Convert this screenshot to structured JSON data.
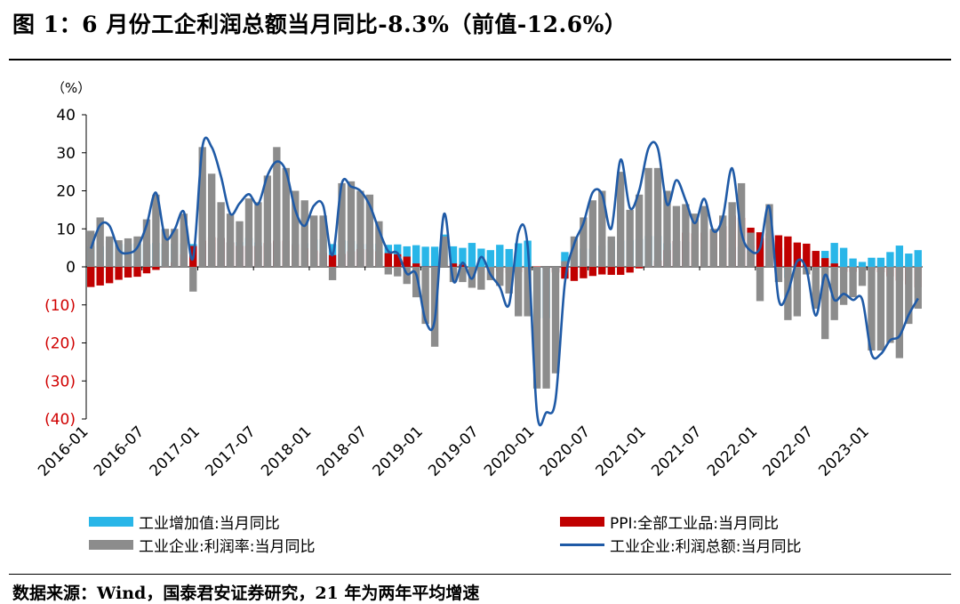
{
  "title": "图 1：6 月份工企利润总额当月同比-8.3%（前值-12.6%）",
  "source": "数据来源：Wind，国泰君安证券研究，21 年为两年平均增速",
  "colors": {
    "value_added": "#29b6e8",
    "ppi": "#c00000",
    "profit_margin": "#8c8c8c",
    "profit_total": "#1f5aa6",
    "negative_tick": "#d00000"
  },
  "chart_data": {
    "type": "bar",
    "y_unit_label": "（%）",
    "ylim": [
      -40,
      40
    ],
    "y_ticks": [
      40,
      30,
      20,
      10,
      0,
      -10,
      -20,
      -30,
      -40
    ],
    "y_tick_labels": [
      "40",
      "30",
      "20",
      "10",
      "0",
      "(10)",
      "(20)",
      "(30)",
      "(40)"
    ],
    "x_ticks": [
      "2016-01",
      "2016-07",
      "2017-01",
      "2017-07",
      "2018-01",
      "2018-07",
      "2019-01",
      "2019-07",
      "2020-01",
      "2020-07",
      "2021-01",
      "2021-07",
      "2022-01",
      "2022-07",
      "2023-01"
    ],
    "x_start": "2016-01",
    "x_end": "2023-06",
    "legend_position": "bottom",
    "series": [
      {
        "name": "工业增加值:当月同比",
        "type": "bar",
        "color_key": "value_added",
        "values": [
          5.4,
          5.4,
          6.8,
          6.0,
          6.0,
          6.2,
          6.0,
          6.3,
          6.1,
          6.1,
          6.2,
          6.0,
          6.3,
          6.3,
          7.6,
          6.5,
          6.5,
          7.6,
          6.4,
          6.0,
          6.6,
          6.2,
          6.1,
          6.2,
          7.2,
          7.2,
          6.0,
          7.0,
          6.8,
          6.0,
          6.0,
          6.1,
          5.8,
          5.9,
          5.4,
          5.7,
          5.3,
          5.3,
          8.5,
          5.4,
          5.0,
          6.3,
          4.8,
          4.4,
          5.8,
          4.7,
          6.2,
          6.9,
          -13.5,
          -13.5,
          -1.1,
          3.9,
          4.4,
          4.8,
          4.8,
          5.6,
          6.9,
          6.9,
          7.0,
          7.3,
          8.1,
          8.1,
          6.2,
          6.8,
          6.6,
          6.4,
          5.3,
          5.4,
          4.9,
          5.1,
          5.3,
          5.6,
          7.5,
          7.5,
          5.0,
          -2.9,
          0.7,
          3.9,
          3.8,
          4.2,
          6.3,
          5.0,
          2.2,
          1.3,
          2.4,
          2.4,
          3.9,
          5.6,
          3.5,
          4.4
        ]
      },
      {
        "name": "PPI:全部工业品:当月同比",
        "type": "bar",
        "color_key": "ppi",
        "values": [
          -5.3,
          -4.9,
          -4.3,
          -3.4,
          -2.8,
          -2.6,
          -1.7,
          -0.8,
          0.1,
          1.2,
          3.3,
          5.5,
          6.9,
          7.8,
          7.6,
          6.4,
          5.5,
          5.5,
          5.5,
          6.3,
          6.9,
          6.9,
          5.8,
          4.9,
          4.3,
          3.7,
          3.1,
          3.4,
          4.1,
          4.7,
          4.6,
          4.1,
          3.6,
          3.3,
          2.7,
          0.9,
          0.1,
          0.1,
          0.4,
          0.9,
          0.6,
          0.0,
          -0.3,
          -0.8,
          -1.2,
          -1.6,
          -1.4,
          -0.5,
          0.1,
          -0.4,
          -1.5,
          -3.1,
          -3.7,
          -3.0,
          -2.4,
          -2.0,
          -2.1,
          -2.1,
          -1.5,
          -0.4,
          0.3,
          1.7,
          4.4,
          6.8,
          9.0,
          8.8,
          9.0,
          9.5,
          10.7,
          13.5,
          12.9,
          10.3,
          9.1,
          8.8,
          8.3,
          8.0,
          6.4,
          6.1,
          4.2,
          2.3,
          0.9,
          -1.3,
          -1.3,
          -0.7,
          -0.8,
          -1.4,
          -2.5,
          -3.6,
          -4.6,
          -5.4
        ]
      },
      {
        "name": "工业企业:利润率:当月同比",
        "type": "bar",
        "color_key": "profit_margin",
        "values": [
          9.5,
          13.0,
          8.0,
          7.0,
          7.5,
          8.0,
          12.5,
          19.0,
          10.0,
          10.0,
          14.0,
          -6.5,
          31.5,
          24.5,
          17.0,
          14.0,
          12.0,
          18.0,
          17.0,
          24.0,
          31.5,
          26.0,
          20.0,
          17.5,
          13.5,
          13.5,
          -3.5,
          22.0,
          22.5,
          20.0,
          19.0,
          12.0,
          -2.0,
          -2.5,
          -4.5,
          -8.0,
          -15.0,
          -21.0,
          8.0,
          -4.0,
          -4.0,
          -5.5,
          -6.0,
          -3.5,
          -5.0,
          -7.0,
          -13.0,
          -13.0,
          -32.0,
          -32.0,
          -28.0,
          1.5,
          8.0,
          13.0,
          17.5,
          20.0,
          8.0,
          25.0,
          15.0,
          19.0,
          26.0,
          26.0,
          20.0,
          16.0,
          16.5,
          14.0,
          16.0,
          10.0,
          13.5,
          17.0,
          22.0,
          9.0,
          -9.0,
          16.5,
          -4.0,
          -14.0,
          -13.0,
          -2.0,
          -11.0,
          -19.0,
          -14.0,
          -10.0,
          -8.0,
          -5.0,
          -22.0,
          -22.0,
          -20.0,
          -24.0,
          -15.0,
          -11.0
        ]
      },
      {
        "name": "工业企业:利润总额:当月同比",
        "type": "line",
        "color_key": "profit_total",
        "values": [
          4.8,
          11.0,
          10.8,
          4.5,
          3.6,
          5.1,
          11.0,
          19.5,
          7.7,
          9.8,
          14.5,
          2.3,
          31.5,
          31.5,
          23.8,
          14.0,
          16.7,
          19.1,
          16.5,
          24.0,
          27.7,
          25.1,
          14.9,
          10.8,
          16.1,
          16.1,
          3.1,
          21.9,
          21.1,
          20.0,
          16.2,
          9.7,
          4.1,
          3.6,
          -1.8,
          -1.9,
          -14.0,
          -14.0,
          13.9,
          -3.7,
          1.1,
          -3.1,
          2.6,
          -2.0,
          -5.3,
          -9.9,
          9.0,
          5.4,
          -38.3,
          -38.3,
          -34.9,
          -4.3,
          6.0,
          11.5,
          19.6,
          19.1,
          10.1,
          28.2,
          15.5,
          20.1,
          31.2,
          31.2,
          16.4,
          22.8,
          17.5,
          11.5,
          17.9,
          9.4,
          13.1,
          25.9,
          9.0,
          4.2,
          5.0,
          15.8,
          -8.5,
          -6.6,
          1.5,
          -0.7,
          -12.8,
          -2.1,
          -8.7,
          -7.1,
          -8.7,
          -8.6,
          -22.9,
          -22.9,
          -19.3,
          -18.2,
          -12.6,
          -8.3
        ]
      }
    ]
  }
}
